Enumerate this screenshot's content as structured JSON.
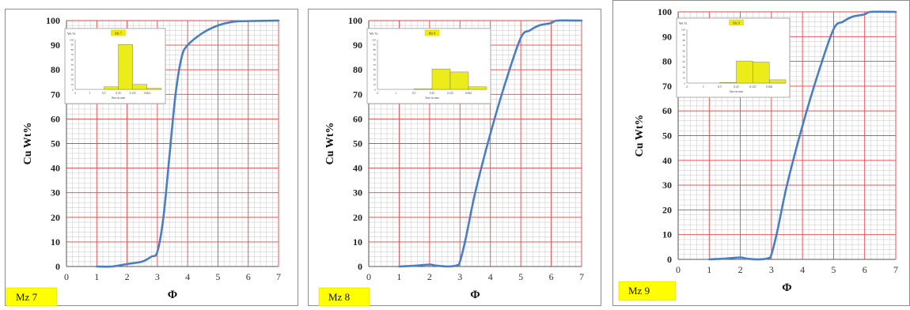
{
  "chart_data": [
    {
      "type": "line",
      "xlabel": "Φ",
      "ylabel": "Cu Wt%",
      "xlim": [
        0,
        7
      ],
      "ylim": [
        0,
        100
      ],
      "xticks": [
        "0",
        "1",
        "2",
        "3",
        "4",
        "5",
        "6",
        "7"
      ],
      "yticks": [
        "0",
        "10",
        "20",
        "30",
        "40",
        "50",
        "60",
        "70",
        "80",
        "90",
        "100"
      ],
      "grid": "on",
      "curve_color": "#4a7ec2",
      "series": [
        {
          "x": [
            1.0,
            1.5,
            2.0,
            2.5,
            2.8,
            3.0,
            3.2,
            3.4,
            3.6,
            3.8,
            4.0,
            4.5,
            5.0,
            5.5,
            6.0,
            7.0
          ],
          "y": [
            0,
            0,
            1,
            2,
            4,
            6,
            20,
            45,
            70,
            85,
            90,
            95,
            98,
            99.5,
            99.8,
            100
          ]
        }
      ],
      "label_box": "Mz 7",
      "inset": {
        "type": "bar",
        "ylabel": "Wt %",
        "xlabel": "Size in mm",
        "title_tag": "Mz 7",
        "xticks": [
          "2",
          "1",
          "0.5",
          "0.25",
          "0.125",
          "0.062"
        ],
        "yticks": [
          "0",
          "10",
          "20",
          "30",
          "40",
          "50",
          "60",
          "70",
          "80",
          "90",
          "100"
        ],
        "values": [
          0,
          0,
          5,
          90,
          10,
          2
        ]
      }
    },
    {
      "type": "line",
      "xlabel": "Φ",
      "ylabel": "Cu Wt%",
      "xlim": [
        0,
        7
      ],
      "ylim": [
        0,
        100
      ],
      "xticks": [
        "0",
        "1",
        "2",
        "3",
        "4",
        "5",
        "6",
        "7"
      ],
      "yticks": [
        "0",
        "10",
        "20",
        "30",
        "40",
        "50",
        "60",
        "70",
        "80",
        "90",
        "100"
      ],
      "grid": "on",
      "curve_color": "#4a7ec2",
      "series": [
        {
          "x": [
            1.0,
            1.5,
            2.0,
            2.2,
            2.6,
            2.9,
            3.0,
            3.2,
            3.5,
            4.0,
            4.5,
            5.0,
            5.3,
            5.6,
            6.0,
            6.2,
            7.0
          ],
          "y": [
            0,
            0.3,
            0.8,
            0.4,
            0,
            0.5,
            2,
            12,
            30,
            54,
            75,
            93,
            96,
            98,
            99,
            100,
            100
          ]
        }
      ],
      "label_box": "Mz 8",
      "inset": {
        "type": "bar",
        "ylabel": "Wt %",
        "xlabel": "Size in mm",
        "title_tag": "Mz 8",
        "xticks": [
          "2",
          "1",
          "0.5",
          "0.25",
          "0.125",
          "0.062"
        ],
        "yticks": [
          "0",
          "10",
          "20",
          "30",
          "40",
          "50",
          "60",
          "70",
          "80",
          "90",
          "100"
        ],
        "values": [
          0,
          0,
          1,
          41,
          35,
          5
        ]
      }
    },
    {
      "type": "line",
      "xlabel": "Φ",
      "ylabel": "Cu Wt%",
      "xlim": [
        0,
        7
      ],
      "ylim": [
        0,
        100
      ],
      "xticks": [
        "0",
        "1",
        "2",
        "3",
        "4",
        "5",
        "6",
        "7"
      ],
      "yticks": [
        "0",
        "10",
        "20",
        "30",
        "40",
        "50",
        "60",
        "70",
        "80",
        "90",
        "100"
      ],
      "grid": "on",
      "curve_color": "#4a7ec2",
      "series": [
        {
          "x": [
            1.0,
            1.5,
            2.0,
            2.2,
            2.6,
            2.9,
            3.0,
            3.2,
            3.5,
            4.0,
            4.5,
            5.0,
            5.3,
            5.6,
            6.0,
            6.2,
            7.0
          ],
          "y": [
            0,
            0.3,
            0.8,
            0.3,
            0,
            0.5,
            2,
            12,
            30,
            54,
            75,
            93,
            96,
            98,
            99,
            100,
            100
          ]
        }
      ],
      "label_box": "Mz 9",
      "inset": {
        "type": "bar",
        "ylabel": "Wt %",
        "xlabel": "Size in mm",
        "title_tag": "Mz 9",
        "xticks": [
          "2",
          "1",
          "0.5",
          "0.25",
          "0.125",
          "0.062"
        ],
        "yticks": [
          "0",
          "10",
          "20",
          "30",
          "40",
          "50",
          "60",
          "70",
          "80",
          "90",
          "100"
        ],
        "values": [
          0,
          0,
          1,
          41,
          39,
          6
        ]
      }
    }
  ]
}
